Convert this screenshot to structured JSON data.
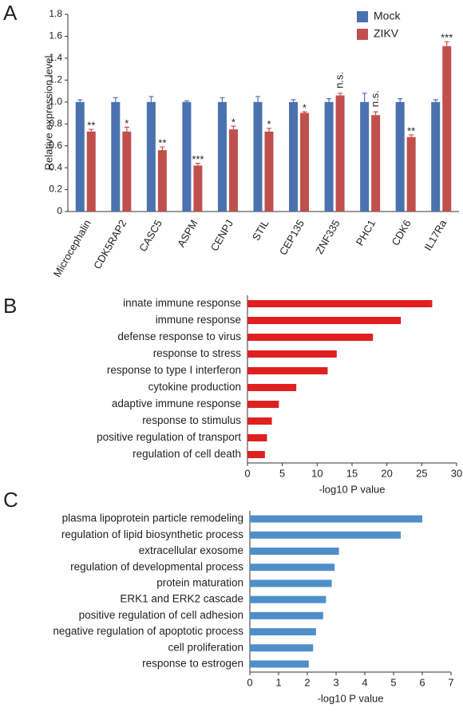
{
  "chart_data": [
    {
      "type": "bar",
      "panel": "A",
      "ylabel": "Relative expression level",
      "categories": [
        "Microcephalin",
        "CDK5RAP2",
        "CASC5",
        "ASPM",
        "CENPJ",
        "STIL",
        "CEP135",
        "ZNF335",
        "PHC1",
        "CDK6",
        "IL17Ra"
      ],
      "series": [
        {
          "name": "Mock",
          "color": "#4a72b0",
          "values": [
            1.0,
            1.0,
            1.0,
            1.0,
            1.0,
            1.0,
            1.0,
            1.0,
            1.0,
            1.0,
            1.0
          ],
          "errors": [
            0.02,
            0.04,
            0.05,
            0.01,
            0.04,
            0.05,
            0.02,
            0.03,
            0.08,
            0.03,
            0.02
          ]
        },
        {
          "name": "ZIKV",
          "color": "#c0504d",
          "values": [
            0.73,
            0.73,
            0.56,
            0.42,
            0.75,
            0.73,
            0.9,
            1.06,
            0.88,
            0.68,
            1.51
          ],
          "errors": [
            0.02,
            0.04,
            0.03,
            0.02,
            0.03,
            0.03,
            0.01,
            0.02,
            0.03,
            0.02,
            0.04
          ],
          "labels": [
            "**",
            "*",
            "**",
            "***",
            "*",
            "*",
            "*",
            "n.s.",
            "n.s.",
            "**",
            "***"
          ]
        }
      ],
      "ylim": [
        0,
        1.8
      ],
      "yticks": [
        0,
        0.2,
        0.4,
        0.6,
        0.8,
        {
          "value": 1,
          "label": "1.0"
        },
        1.2,
        1.4,
        1.6,
        1.8
      ],
      "legend": "top-right"
    },
    {
      "type": "barh",
      "panel": "B",
      "xlabel": "-log10 P value",
      "color": "#e02020",
      "categories": [
        "innate immune response",
        "immune response",
        "defense response to virus",
        "response to stress",
        "response to type I interferon",
        "cytokine production",
        "adaptive immune response",
        "response to stimulus",
        "positive regulation of transport",
        "regulation of cell death"
      ],
      "values": [
        26.5,
        22,
        18,
        12.8,
        11.5,
        7,
        4.5,
        3.5,
        2.8,
        2.5
      ],
      "xlim": [
        0,
        30
      ],
      "xticks": [
        0,
        5,
        10,
        15,
        20,
        25,
        30
      ]
    },
    {
      "type": "barh",
      "panel": "C",
      "xlabel": "-log10 P value",
      "color": "#4f8fc8",
      "categories": [
        "plasma lipoprotein particle remodeling",
        "regulation of lipid biosynthetic process",
        "extracellular exosome",
        "regulation of developmental process",
        "protein maturation",
        "ERK1 and ERK2 cascade",
        "positive regulation of cell adhesion",
        "negative regulation of  apoptotic process",
        "cell proliferation",
        "response to estrogen"
      ],
      "values": [
        6.0,
        5.25,
        3.1,
        2.95,
        2.85,
        2.65,
        2.55,
        2.3,
        2.2,
        2.05
      ],
      "xlim": [
        0,
        7
      ],
      "xticks": [
        0,
        1,
        2,
        3,
        4,
        5,
        6,
        7
      ]
    }
  ]
}
